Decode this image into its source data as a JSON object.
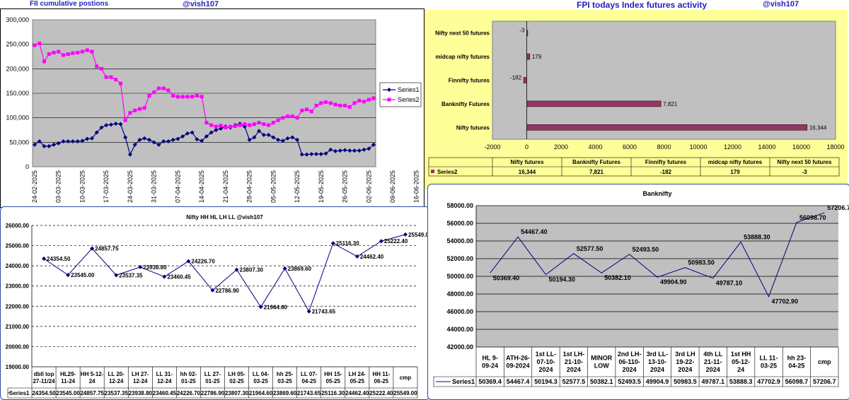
{
  "header": {
    "left_title": "FII cumulative postions",
    "left_handle": "@vish107",
    "right_title": "FPI todays Index futures activity",
    "right_handle": "@vish107"
  },
  "chart_data": [
    {
      "id": "fii",
      "type": "line",
      "title": "",
      "ylim": [
        0,
        300000
      ],
      "yticks": [
        "0",
        "50,000",
        "100,000",
        "150,000",
        "200,000",
        "250,000",
        "300,000"
      ],
      "x_tick_labels": [
        "24-02-2025",
        "03-03-2025",
        "10-03-2025",
        "17-03-2025",
        "24-03-2025",
        "31-03-2025",
        "07-04-2025",
        "14-04-2025",
        "21-04-2025",
        "28-04-2025",
        "05-05-2025",
        "12-05-2025",
        "19-05-2025",
        "26-05-2025",
        "02-06-2025",
        "09-06-2025",
        "16-06-2025"
      ],
      "legend_position": "right",
      "series": [
        {
          "name": "Series1",
          "color": "#00007f",
          "values": [
            45000,
            52000,
            42000,
            42000,
            45000,
            48000,
            52000,
            52000,
            52000,
            52000,
            53000,
            57000,
            58000,
            70000,
            80000,
            85000,
            86000,
            88000,
            87000,
            60000,
            25000,
            45000,
            55000,
            58000,
            55000,
            50000,
            45000,
            52000,
            52000,
            55000,
            57000,
            62000,
            68000,
            70000,
            56000,
            53000,
            62000,
            70000,
            75000,
            78000,
            82000,
            80000,
            85000,
            88000,
            82000,
            55000,
            60000,
            73000,
            65000,
            65000,
            60000,
            55000,
            53000,
            58000,
            60000,
            55000,
            25000,
            25000,
            26000,
            26000,
            26000,
            27000,
            35000,
            32000,
            33000,
            34000,
            33000,
            33000,
            33000,
            35000,
            37000,
            45000
          ]
        },
        {
          "name": "Series2",
          "color": "#ff00ff",
          "values": [
            248000,
            252000,
            215000,
            230000,
            233000,
            235000,
            228000,
            230000,
            232000,
            233000,
            235000,
            238000,
            235000,
            205000,
            200000,
            183000,
            183000,
            178000,
            170000,
            95000,
            110000,
            115000,
            118000,
            120000,
            145000,
            152000,
            160000,
            160000,
            156000,
            145000,
            143000,
            143000,
            143000,
            143000,
            145000,
            143000,
            90000,
            85000,
            82000,
            84000,
            80000,
            82000,
            83000,
            85000,
            87000,
            85000,
            87000,
            90000,
            87000,
            85000,
            90000,
            95000,
            100000,
            103000,
            103000,
            100000,
            115000,
            117000,
            113000,
            125000,
            130000,
            132000,
            130000,
            127000,
            125000,
            125000,
            122000,
            130000,
            135000,
            133000,
            137000,
            140000
          ]
        }
      ]
    },
    {
      "id": "fpi",
      "type": "bar",
      "title": "",
      "categories": [
        "Nifty futures",
        "Banknifty Futures",
        "Finnifty futures",
        "midcap nifty futures",
        "Nifty next 50 futures"
      ],
      "values": [
        16344,
        7821,
        -182,
        179,
        -3
      ],
      "value_labels": [
        "16,344",
        "7,821",
        "-182",
        "179",
        "-3"
      ],
      "xlim": [
        -2000,
        18000
      ],
      "xticks": [
        "-2000",
        "0",
        "2000",
        "4000",
        "6000",
        "8000",
        "10000",
        "12000",
        "14000",
        "16000",
        "18000"
      ],
      "series_name": "Series2",
      "bar_color": "#993366"
    },
    {
      "id": "nifty",
      "type": "line",
      "title": "Nifty HH HL LH LL      @vish107",
      "ylim": [
        19000,
        26000
      ],
      "yticks": [
        "19000.00",
        "20000.00",
        "21000.00",
        "22000.00",
        "23000.00",
        "24000.00",
        "25000.00",
        "26000.00"
      ],
      "categories": [
        [
          "dbll top",
          "27-11/24"
        ],
        [
          "HL29-",
          "11-24"
        ],
        [
          "HH 5-12-",
          "24"
        ],
        [
          "LL 20-",
          "12-24"
        ],
        [
          "LH 27-",
          "12-24"
        ],
        [
          "LL 31-",
          "12-24"
        ],
        [
          "hh 02-",
          "01-25"
        ],
        [
          "LL 27-",
          "01-25"
        ],
        [
          "LH 05-",
          "02-25"
        ],
        [
          "LL 04-",
          "03-25"
        ],
        [
          "hh 25-",
          "03-25"
        ],
        [
          "LL 07-",
          "04-25"
        ],
        [
          "HH 15-",
          "05-25"
        ],
        [
          "LH 24-",
          "05-25"
        ],
        [
          "HH 11-",
          "06-25"
        ],
        [
          "cmp",
          ""
        ]
      ],
      "values": [
        24354.5,
        23545.0,
        24857.75,
        23537.35,
        23938.8,
        23460.45,
        24226.7,
        22786.9,
        23807.3,
        21964.6,
        23869.6,
        21743.65,
        25116.3,
        24462.4,
        25222.4,
        25549.0
      ],
      "labels": [
        "24354.50",
        "23545.00",
        "24857.75",
        "23537.35",
        "23938.80",
        "23460.45",
        "24226.70",
        "22786.90",
        "23807.30",
        "21964.60",
        "23869.60",
        "21743.65",
        "25116.30",
        "24462.40",
        "25222.40",
        "25549.00"
      ],
      "series_name": "Series1",
      "color": "#00007f"
    },
    {
      "id": "banknifty",
      "type": "line",
      "title": "Banknifty",
      "ylim": [
        42000,
        58000
      ],
      "yticks": [
        "42000.00",
        "44000.00",
        "46000.00",
        "48000.00",
        "50000.00",
        "52000.00",
        "54000.00",
        "56000.00",
        "58000.00"
      ],
      "categories": [
        [
          "HL 9-",
          "09-24"
        ],
        [
          "ATH-26-",
          "09-2024"
        ],
        [
          "1st  LL-",
          "07-10-",
          "2024"
        ],
        [
          "1st LH-",
          "21-10-",
          "2024"
        ],
        [
          "MINOR",
          "LOW"
        ],
        [
          "2nd LH-",
          "06-110-",
          "2024"
        ],
        [
          "3rd LL-",
          "13-10-",
          "2024"
        ],
        [
          "3rd LH",
          "19-22-",
          "2024"
        ],
        [
          "4th LL",
          "21-11-",
          "2024"
        ],
        [
          "1st HH",
          "05-12-",
          "24"
        ],
        [
          "LL 11-",
          "03-25"
        ],
        [
          "hh 23-",
          "04-25"
        ],
        [
          "cmp"
        ]
      ],
      "values": [
        50369.4,
        54467.4,
        50194.3,
        52577.5,
        50382.1,
        52493.5,
        49904.9,
        50983.5,
        49787.1,
        53888.3,
        47702.9,
        56098.7,
        57206.7
      ],
      "labels": [
        "50369.40",
        "54467.40",
        "50194.30",
        "52577.50",
        "50382.10",
        "52493.50",
        "49904.90",
        "50983.50",
        "49787.10",
        "53888.30",
        "47702.90",
        "56098.70",
        "57206.70"
      ],
      "table_values": [
        "50369.4",
        "54467.4",
        "50194.3",
        "52577.5",
        "50382.1",
        "52493.5",
        "49904.9",
        "50983.5",
        "49787.1",
        "53888.3",
        "47702.9",
        "56098.7",
        "57206.7"
      ],
      "series_name": "Series1",
      "color": "#00007f"
    }
  ]
}
